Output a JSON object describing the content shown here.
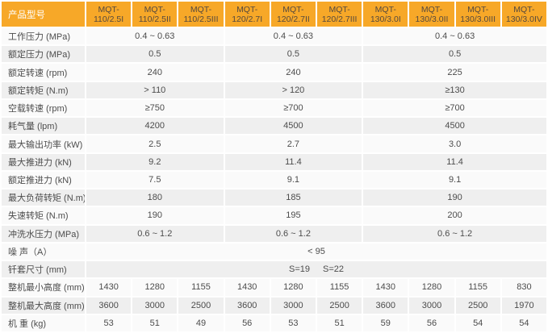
{
  "colors": {
    "header_bg": "#F7A828",
    "header_text": "#55493E",
    "corner_text": "#FFFFFF",
    "body_text": "#4C4C4C",
    "stripe_light": "#FAFAFA",
    "stripe_dark": "#EFEFEF"
  },
  "table": {
    "header": {
      "label": "产品型号",
      "models": [
        {
          "line1": "MQT-",
          "line2": "110/2.5I",
          "full": "MQT-110/2.5I"
        },
        {
          "line1": "MQT-",
          "line2": "110/2.5II",
          "full": "MQT-110/2.5II"
        },
        {
          "line1": "MQT-",
          "line2": "110/2.5III",
          "full": "MQT-110/2.5III"
        },
        {
          "line1": "MQT-",
          "line2": "120/2.7I",
          "full": "MQT-120/2.7I"
        },
        {
          "line1": "MQT-",
          "line2": "120/2.7II",
          "full": "MQT-120/2.7II"
        },
        {
          "line1": "MQT-",
          "line2": "120/2.7III",
          "full": "MQT-120/2.7III"
        },
        {
          "line1": "MQT-",
          "line2": "130/3.0I",
          "full": "MQT-130/3.0I"
        },
        {
          "line1": "MQT-",
          "line2": "130/3.0II",
          "full": "MQT-130/3.0II"
        },
        {
          "line1": "MQT-",
          "line2": "130/3.0III",
          "full": "MQT-130/3.0III"
        },
        {
          "line1": "MQT-",
          "line2": "130/3.0IV",
          "full": "MQT-130/3.0IV"
        }
      ]
    },
    "rows": [
      {
        "label": "工作压力 (MPa)",
        "cells": [
          {
            "text": "0.4 ~ 0.63",
            "span": 3
          },
          {
            "text": "0.4 ~ 0.63",
            "span": 3
          },
          {
            "text": "0.4 ~ 0.63",
            "span": 4
          }
        ]
      },
      {
        "label": "额定压力 (MPa)",
        "cells": [
          {
            "text": "0.5",
            "span": 3
          },
          {
            "text": "0.5",
            "span": 3
          },
          {
            "text": "0.5",
            "span": 4
          }
        ]
      },
      {
        "label": "额定转速 (rpm)",
        "cells": [
          {
            "text": "240",
            "span": 3
          },
          {
            "text": "240",
            "span": 3
          },
          {
            "text": "225",
            "span": 4
          }
        ]
      },
      {
        "label": "额定转矩 (N.m)",
        "cells": [
          {
            "text": "> 110",
            "span": 3
          },
          {
            "text": "> 120",
            "span": 3
          },
          {
            "text": "≥130",
            "span": 4
          }
        ]
      },
      {
        "label": "空载转速 (rpm)",
        "cells": [
          {
            "text": "≥750",
            "span": 3
          },
          {
            "text": "≥700",
            "span": 3
          },
          {
            "text": "≥700",
            "span": 4
          }
        ]
      },
      {
        "label": "耗气量 (lpm)",
        "cells": [
          {
            "text": "4200",
            "span": 3
          },
          {
            "text": "4500",
            "span": 3
          },
          {
            "text": "4500",
            "span": 4
          }
        ]
      },
      {
        "label": "最大输出功率 (kW)",
        "cells": [
          {
            "text": "2.5",
            "span": 3
          },
          {
            "text": "2.7",
            "span": 3
          },
          {
            "text": "3.0",
            "span": 4
          }
        ]
      },
      {
        "label": "最大推进力 (kN)",
        "cells": [
          {
            "text": "9.2",
            "span": 3
          },
          {
            "text": "11.4",
            "span": 3
          },
          {
            "text": "11.4",
            "span": 4
          }
        ]
      },
      {
        "label": "额定推进力 (kN)",
        "cells": [
          {
            "text": "7.5",
            "span": 3
          },
          {
            "text": "9.1",
            "span": 3
          },
          {
            "text": "9.1",
            "span": 4
          }
        ]
      },
      {
        "label": "最大负荷转矩 (N.m)",
        "cells": [
          {
            "text": "180",
            "span": 3
          },
          {
            "text": "185",
            "span": 3
          },
          {
            "text": "190",
            "span": 4
          }
        ]
      },
      {
        "label": "失速转矩 (N.m)",
        "cells": [
          {
            "text": "190",
            "span": 3
          },
          {
            "text": "195",
            "span": 3
          },
          {
            "text": "200",
            "span": 4
          }
        ]
      },
      {
        "label": "冲洗水压力 (MPa)",
        "cells": [
          {
            "text": "0.6 ~ 1.2",
            "span": 3
          },
          {
            "text": "0.6 ~ 1.2",
            "span": 3
          },
          {
            "text": "0.6 ~ 1.2",
            "span": 4
          }
        ]
      },
      {
        "label": "噪 声（A）",
        "cells": [
          {
            "text": "< 95",
            "span": 10
          }
        ]
      },
      {
        "label": "钎套尺寸 (mm)",
        "cells": [
          {
            "parts": [
              "S=19",
              "S=22"
            ],
            "span": 10
          }
        ]
      },
      {
        "label": "整机最小高度 (mm)",
        "cells": [
          {
            "text": "1430"
          },
          {
            "text": "1280"
          },
          {
            "text": "1155"
          },
          {
            "text": "1430"
          },
          {
            "text": "1280"
          },
          {
            "text": "1155"
          },
          {
            "text": "1430"
          },
          {
            "text": "1280"
          },
          {
            "text": "1155"
          },
          {
            "text": "830"
          }
        ]
      },
      {
        "label": "整机最大高度 (mm)",
        "cells": [
          {
            "text": "3600"
          },
          {
            "text": "3000"
          },
          {
            "text": "2500"
          },
          {
            "text": "3600"
          },
          {
            "text": "3000"
          },
          {
            "text": "2500"
          },
          {
            "text": "3600"
          },
          {
            "text": "3000"
          },
          {
            "text": "2500"
          },
          {
            "text": "1970"
          }
        ]
      },
      {
        "label": "机 重 (kg)",
        "cells": [
          {
            "text": "53"
          },
          {
            "text": "51"
          },
          {
            "text": "49"
          },
          {
            "text": "56"
          },
          {
            "text": "53"
          },
          {
            "text": "51"
          },
          {
            "text": "59"
          },
          {
            "text": "56"
          },
          {
            "text": "54"
          },
          {
            "text": "54"
          }
        ]
      }
    ]
  }
}
